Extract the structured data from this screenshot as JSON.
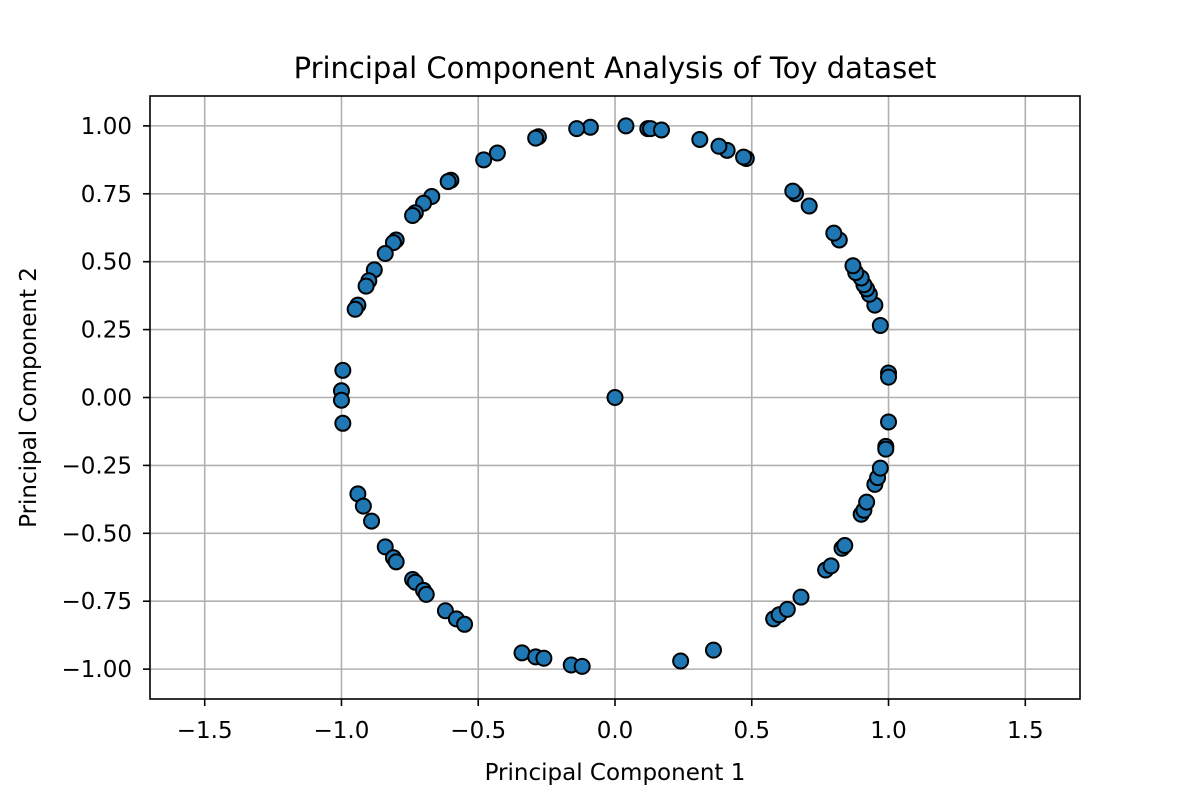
{
  "chart_data": {
    "type": "scatter",
    "title": "Principal Component Analysis of Toy dataset",
    "xlabel": "Principal Component 1",
    "ylabel": "Principal Component 2",
    "xlim": [
      -1.7,
      1.7
    ],
    "ylim": [
      -1.11,
      1.11
    ],
    "grid": true,
    "legend": "none",
    "point_color": "#1f77b4",
    "edge_color": "#000000",
    "x_ticks": [
      -1.5,
      -1.0,
      -0.5,
      0.0,
      0.5,
      1.0,
      1.5
    ],
    "x_tick_labels": [
      "−1.5",
      "−1.0",
      "−0.5",
      "0.0",
      "0.5",
      "1.0",
      "1.5"
    ],
    "y_ticks": [
      1.0,
      0.75,
      0.5,
      0.25,
      0.0,
      -0.25,
      -0.5,
      -0.75,
      -1.0
    ],
    "y_tick_labels": [
      "1.00",
      "0.75",
      "0.50",
      "0.25",
      "0.00",
      "−0.25",
      "−0.50",
      "−0.75",
      "−1.00"
    ],
    "points": [
      [
        0.04,
        1.0
      ],
      [
        0.12,
        0.99
      ],
      [
        0.13,
        0.99
      ],
      [
        0.17,
        0.985
      ],
      [
        -0.09,
        0.995
      ],
      [
        -0.14,
        0.99
      ],
      [
        -0.28,
        0.96
      ],
      [
        -0.29,
        0.955
      ],
      [
        -0.43,
        0.9
      ],
      [
        -0.48,
        0.875
      ],
      [
        -0.6,
        0.8
      ],
      [
        -0.61,
        0.795
      ],
      [
        -0.67,
        0.74
      ],
      [
        -0.7,
        0.715
      ],
      [
        -0.73,
        0.68
      ],
      [
        -0.74,
        0.67
      ],
      [
        -0.8,
        0.58
      ],
      [
        -0.81,
        0.57
      ],
      [
        -0.84,
        0.53
      ],
      [
        -0.88,
        0.47
      ],
      [
        -0.9,
        0.43
      ],
      [
        -0.91,
        0.41
      ],
      [
        -0.94,
        0.34
      ],
      [
        -0.95,
        0.325
      ],
      [
        -0.995,
        0.1
      ],
      [
        -1.0,
        0.025
      ],
      [
        -1.0,
        -0.01
      ],
      [
        -0.995,
        -0.095
      ],
      [
        -0.94,
        -0.355
      ],
      [
        -0.92,
        -0.4
      ],
      [
        -0.89,
        -0.455
      ],
      [
        -0.84,
        -0.55
      ],
      [
        -0.81,
        -0.59
      ],
      [
        -0.8,
        -0.605
      ],
      [
        -0.74,
        -0.67
      ],
      [
        -0.73,
        -0.68
      ],
      [
        -0.7,
        -0.71
      ],
      [
        -0.69,
        -0.725
      ],
      [
        -0.62,
        -0.785
      ],
      [
        -0.58,
        -0.815
      ],
      [
        -0.55,
        -0.835
      ],
      [
        -0.34,
        -0.94
      ],
      [
        -0.29,
        -0.955
      ],
      [
        -0.26,
        -0.96
      ],
      [
        -0.16,
        -0.985
      ],
      [
        -0.12,
        -0.99
      ],
      [
        0.24,
        -0.97
      ],
      [
        0.36,
        -0.93
      ],
      [
        0.58,
        -0.815
      ],
      [
        0.6,
        -0.8
      ],
      [
        0.63,
        -0.78
      ],
      [
        0.68,
        -0.735
      ],
      [
        0.77,
        -0.635
      ],
      [
        0.79,
        -0.62
      ],
      [
        0.83,
        -0.555
      ],
      [
        0.84,
        -0.545
      ],
      [
        0.9,
        -0.43
      ],
      [
        0.91,
        -0.415
      ],
      [
        0.92,
        -0.385
      ],
      [
        0.95,
        -0.32
      ],
      [
        0.96,
        -0.295
      ],
      [
        0.97,
        -0.26
      ],
      [
        0.99,
        -0.18
      ],
      [
        0.99,
        -0.19
      ],
      [
        1.0,
        -0.09
      ],
      [
        1.0,
        0.09
      ],
      [
        1.0,
        0.075
      ],
      [
        0.97,
        0.265
      ],
      [
        0.95,
        0.34
      ],
      [
        0.93,
        0.38
      ],
      [
        0.92,
        0.4
      ],
      [
        0.91,
        0.415
      ],
      [
        0.9,
        0.44
      ],
      [
        0.88,
        0.46
      ],
      [
        0.87,
        0.485
      ],
      [
        0.82,
        0.58
      ],
      [
        0.8,
        0.605
      ],
      [
        0.71,
        0.705
      ],
      [
        0.66,
        0.75
      ],
      [
        0.65,
        0.76
      ],
      [
        0.48,
        0.88
      ],
      [
        0.47,
        0.885
      ],
      [
        0.41,
        0.91
      ],
      [
        0.38,
        0.925
      ],
      [
        0.31,
        0.95
      ],
      [
        0.0,
        0.0
      ]
    ]
  }
}
